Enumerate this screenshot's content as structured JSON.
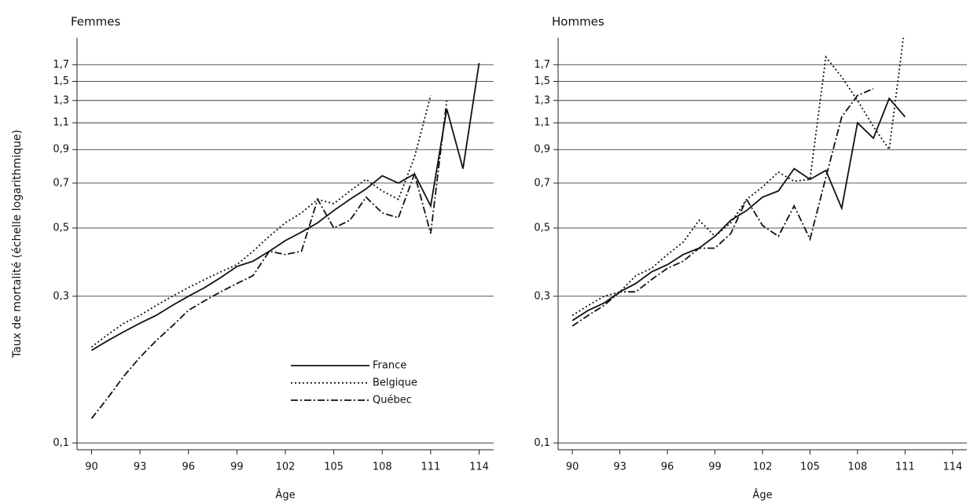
{
  "chart_data": [
    {
      "type": "line",
      "title": "Femmes",
      "xlabel": "Âge",
      "ylabel": "Taux de mortalité (échelle logarithmique)",
      "log_y": true,
      "grid": true,
      "legend": "lower right",
      "xlim": [
        89.1,
        114.9
      ],
      "ylim": [
        0.095,
        2.08
      ],
      "xticks": [
        90,
        93,
        96,
        99,
        102,
        105,
        108,
        111,
        114
      ],
      "yticks": [
        {
          "value": 0.1,
          "label": "0,1"
        },
        {
          "value": 0.3,
          "label": "0,3"
        },
        {
          "value": 0.5,
          "label": "0,5"
        },
        {
          "value": 0.7,
          "label": "0,7"
        },
        {
          "value": 0.9,
          "label": "0,9"
        },
        {
          "value": 1.1,
          "label": "1,1"
        },
        {
          "value": 1.3,
          "label": "1,3"
        },
        {
          "value": 1.5,
          "label": "1,5"
        },
        {
          "value": 1.7,
          "label": "1,7"
        }
      ],
      "x": [
        90,
        91,
        92,
        93,
        94,
        95,
        96,
        97,
        98,
        99,
        100,
        101,
        102,
        103,
        104,
        105,
        106,
        107,
        108,
        109,
        110,
        111,
        112,
        113,
        114
      ],
      "series": [
        {
          "name": "France",
          "color": "#111111",
          "linestyle": "solid",
          "values": [
            0.2,
            0.215,
            0.23,
            0.245,
            0.26,
            0.28,
            0.3,
            0.32,
            0.345,
            0.375,
            0.39,
            0.42,
            0.455,
            0.485,
            0.52,
            0.57,
            0.62,
            0.67,
            0.74,
            0.7,
            0.75,
            0.59,
            1.22,
            0.78,
            1.72
          ]
        },
        {
          "name": "Belgique",
          "color": "#111111",
          "linestyle": "dotted",
          "values": [
            0.205,
            0.225,
            0.245,
            0.26,
            0.28,
            0.3,
            0.32,
            0.34,
            0.36,
            0.38,
            0.42,
            0.47,
            0.52,
            0.56,
            0.62,
            0.6,
            0.66,
            0.72,
            0.66,
            0.62,
            0.85,
            1.35,
            null,
            null,
            null
          ]
        },
        {
          "name": "Québec",
          "color": "#111111",
          "linestyle": "dashdot",
          "values": [
            0.12,
            0.14,
            0.165,
            0.19,
            0.215,
            0.24,
            0.27,
            0.29,
            0.31,
            0.33,
            0.35,
            0.42,
            0.41,
            0.42,
            0.62,
            0.5,
            0.53,
            0.63,
            0.56,
            0.54,
            0.75,
            0.48,
            1.3,
            null,
            null
          ]
        }
      ]
    },
    {
      "type": "line",
      "title": "Hommes",
      "xlabel": "Âge",
      "log_y": true,
      "grid": true,
      "xlim": [
        89.1,
        114.9
      ],
      "ylim": [
        0.095,
        2.08
      ],
      "xticks": [
        90,
        93,
        96,
        99,
        102,
        105,
        108,
        111,
        114
      ],
      "yticks": [
        {
          "value": 0.1,
          "label": "0,1"
        },
        {
          "value": 0.3,
          "label": "0,3"
        },
        {
          "value": 0.5,
          "label": "0,5"
        },
        {
          "value": 0.7,
          "label": "0,7"
        },
        {
          "value": 0.9,
          "label": "0,9"
        },
        {
          "value": 1.1,
          "label": "1,1"
        },
        {
          "value": 1.3,
          "label": "1,3"
        },
        {
          "value": 1.5,
          "label": "1,5"
        },
        {
          "value": 1.7,
          "label": "1,7"
        }
      ],
      "x": [
        90,
        91,
        92,
        93,
        94,
        95,
        96,
        97,
        98,
        99,
        100,
        101,
        102,
        103,
        104,
        105,
        106,
        107,
        108,
        109,
        110,
        111
      ],
      "series": [
        {
          "name": "France",
          "color": "#111111",
          "linestyle": "solid",
          "values": [
            0.25,
            0.27,
            0.285,
            0.31,
            0.33,
            0.36,
            0.38,
            0.41,
            0.43,
            0.47,
            0.53,
            0.57,
            0.63,
            0.66,
            0.78,
            0.72,
            0.77,
            0.58,
            1.1,
            0.98,
            1.32,
            1.15
          ]
        },
        {
          "name": "Belgique",
          "color": "#111111",
          "linestyle": "dotted",
          "values": [
            0.26,
            0.28,
            0.3,
            0.31,
            0.35,
            0.37,
            0.41,
            0.45,
            0.53,
            0.47,
            0.52,
            0.62,
            0.68,
            0.76,
            0.71,
            0.72,
            1.8,
            1.55,
            1.3,
            1.07,
            0.9,
            2.3
          ]
        },
        {
          "name": "Québec",
          "color": "#111111",
          "linestyle": "dashdot",
          "values": [
            0.24,
            0.26,
            0.28,
            0.31,
            0.31,
            0.34,
            0.37,
            0.39,
            0.43,
            0.43,
            0.48,
            0.62,
            0.51,
            0.47,
            0.59,
            0.46,
            0.73,
            1.15,
            1.35,
            1.42,
            null,
            null
          ]
        }
      ]
    }
  ]
}
